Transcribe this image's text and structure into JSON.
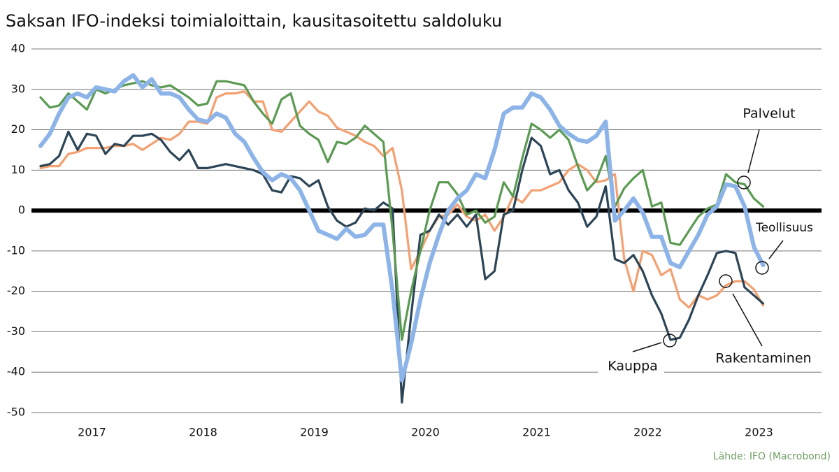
{
  "chart_data": {
    "type": "line",
    "title": "Saksan IFO-indeksi toimialoittain, kausitasoitettu saldoluku",
    "source": "Lähde: IFO (Macrobond)",
    "categories": [
      null,
      null,
      null,
      null,
      null,
      null,
      "2017",
      null,
      null,
      null,
      null,
      null,
      null,
      null,
      null,
      null,
      null,
      null,
      "2018",
      null,
      null,
      null,
      null,
      null,
      null,
      null,
      null,
      null,
      null,
      null,
      "2019",
      null,
      null,
      null,
      null,
      null,
      null,
      null,
      null,
      null,
      null,
      null,
      "2020",
      null,
      null,
      null,
      null,
      null,
      null,
      null,
      null,
      null,
      null,
      null,
      "2021",
      null,
      null,
      null,
      null,
      null,
      null,
      null,
      null,
      null,
      null,
      null,
      "2022",
      null,
      null,
      null,
      null,
      null,
      null,
      null,
      null,
      null,
      null,
      null,
      "2023"
    ],
    "ylim": [
      -50,
      40
    ],
    "yticks": [
      -50,
      -40,
      -30,
      -20,
      -10,
      0,
      10,
      20,
      30,
      40
    ],
    "grid": true,
    "series": [
      {
        "name": "Palvelut",
        "color": "#5a9a52",
        "values": [
          28,
          25.5,
          26,
          29,
          27,
          25,
          30,
          29,
          30,
          31,
          31.5,
          32,
          31,
          30.5,
          31,
          29.5,
          28,
          26,
          26.5,
          32,
          32,
          31.5,
          31,
          27,
          24,
          21.5,
          27.5,
          29,
          21,
          19,
          17.5,
          12,
          17,
          16.5,
          18,
          21,
          19,
          17,
          -5,
          -32,
          -20,
          -10,
          0,
          7,
          7,
          4,
          -1,
          0,
          -3,
          -1.5,
          7,
          3.5,
          13,
          21.5,
          20,
          18,
          20,
          17.5,
          11,
          5,
          7.5,
          13.5,
          1,
          5.5,
          8,
          10,
          1,
          2,
          -8,
          -8.5,
          -5,
          -1.5,
          0.5,
          1.5,
          9,
          7,
          6.5,
          3,
          1
        ]
      },
      {
        "name": "Rakentaminen",
        "color": "#f4a070",
        "values": [
          10.5,
          11,
          11,
          14,
          14.5,
          15.5,
          15.5,
          15.5,
          16,
          16,
          16.5,
          15,
          16.5,
          18,
          17.5,
          19,
          22,
          22,
          21.5,
          28,
          29,
          29,
          29.5,
          27,
          27,
          20,
          19.5,
          22,
          24.5,
          27,
          24.5,
          23.5,
          20.5,
          19.5,
          18.5,
          17,
          16,
          13.5,
          15.5,
          5,
          -14.5,
          -10,
          -5,
          -1.5,
          -1,
          1.5,
          -1.5,
          -2.5,
          -1,
          -5,
          -1.5,
          3.5,
          2,
          5,
          5,
          6,
          7,
          10,
          11.5,
          10,
          7,
          7.5,
          9,
          -12,
          -20,
          -10,
          -11,
          -16,
          -14.5,
          -22,
          -24,
          -21,
          -22,
          -21,
          -18.5,
          -17.5,
          -17.5,
          -19.5,
          -23.5
        ]
      },
      {
        "name": "Kauppa",
        "color": "#2c4556",
        "values": [
          11,
          11.5,
          13.5,
          19.5,
          15,
          19,
          18.5,
          14,
          16.5,
          16,
          18.5,
          18.5,
          19,
          17.5,
          14.5,
          12.5,
          15,
          10.5,
          10.5,
          11,
          11.5,
          11,
          10.5,
          10,
          9,
          5,
          4.5,
          8.5,
          8,
          6,
          7.5,
          1,
          -2.5,
          -4,
          -3,
          0.5,
          0,
          2,
          0.5,
          -47.5,
          -26,
          -6,
          -5,
          -1,
          -3.5,
          -1,
          -4,
          -1,
          -17,
          -15,
          -1,
          0,
          10,
          18,
          16,
          9,
          10,
          5,
          2,
          -4,
          -1.5,
          6,
          -12,
          -13,
          -11,
          -15,
          -21,
          -25.5,
          -32,
          -31.5,
          -27,
          -21,
          -16,
          -10.5,
          -10,
          -10.5,
          -19,
          -21,
          -23
        ]
      },
      {
        "name": "Teollisuus",
        "color": "#8db4e8",
        "values": [
          16,
          19,
          24,
          28,
          29,
          28,
          30.5,
          30,
          29.5,
          32,
          33.5,
          30.5,
          32.5,
          29,
          29,
          28,
          25,
          22.5,
          22,
          24,
          23,
          19,
          17,
          13,
          9.5,
          7.5,
          9,
          8,
          5,
          0,
          -5,
          -6,
          -7,
          -4.5,
          -6.5,
          -6,
          -3.5,
          -3.5,
          -20,
          -42,
          -33,
          -22,
          -13,
          -6,
          0,
          3,
          5,
          9,
          8,
          15,
          24,
          25.5,
          25.5,
          29,
          28,
          25,
          21,
          19,
          17.5,
          17,
          18.5,
          22,
          -2.5,
          0,
          3,
          -0.5,
          -6.5,
          -6.5,
          -13,
          -14,
          -10,
          -6,
          -1,
          1,
          6.5,
          6,
          1,
          -9,
          -13.5
        ]
      }
    ]
  }
}
